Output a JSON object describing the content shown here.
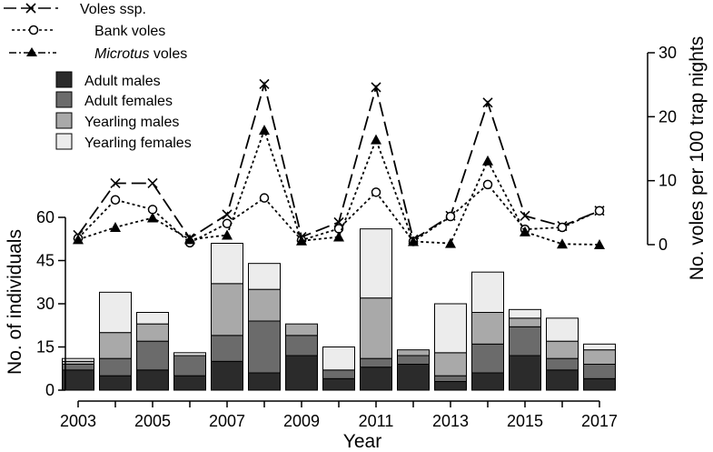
{
  "chart_data": {
    "type": "bar",
    "stacked": true,
    "title": "",
    "years": [
      2003,
      2004,
      2005,
      2006,
      2007,
      2008,
      2009,
      2010,
      2011,
      2012,
      2013,
      2014,
      2015,
      2016,
      2017
    ],
    "x_tick_labels": [
      "2003",
      "2005",
      "2007",
      "2009",
      "2011",
      "2013",
      "2015",
      "2017"
    ],
    "xlabel": "Year",
    "ylabel_left": "No. of individuals",
    "ylim_left": [
      0,
      60
    ],
    "yticks_left": [
      "0",
      "15",
      "30",
      "45",
      "60"
    ],
    "ylabel_right": "No. voles per 100 trap nights",
    "ylim_right": [
      0,
      30
    ],
    "yticks_right": [
      "0",
      "10",
      "20",
      "30"
    ],
    "bar_series": [
      {
        "name": "Adult males",
        "color": "#2b2b2b",
        "values": [
          7,
          5,
          7,
          5,
          10,
          6,
          12,
          4,
          8,
          9,
          3,
          6,
          12,
          7,
          4
        ]
      },
      {
        "name": "Adult females",
        "color": "#6b6b6b",
        "values": [
          2,
          6,
          10,
          7,
          9,
          18,
          7,
          3,
          3,
          3,
          2,
          10,
          10,
          4,
          5
        ]
      },
      {
        "name": "Yearling males",
        "color": "#a9a9a9",
        "values": [
          1,
          9,
          6,
          0,
          18,
          11,
          4,
          0,
          21,
          2,
          8,
          11,
          3,
          6,
          5
        ]
      },
      {
        "name": "Yearling females",
        "color": "#ececec",
        "values": [
          1,
          14,
          4,
          1,
          14,
          9,
          0,
          8,
          24,
          0,
          17,
          14,
          3,
          8,
          2
        ]
      }
    ],
    "line_series": [
      {
        "name": "Voles ssp.",
        "style": "long-dash",
        "marker": "x",
        "values": [
          1.5,
          9.6,
          9.6,
          1.0,
          4.7,
          25.1,
          1.2,
          3.5,
          24.6,
          0.8,
          4.5,
          22.2,
          4.5,
          2.9,
          5.3
        ]
      },
      {
        "name": "Bank voles",
        "style": "short-dash",
        "marker": "open-circle",
        "values": [
          1.0,
          7.0,
          5.5,
          0.3,
          3.3,
          7.3,
          0.7,
          2.5,
          8.2,
          0.5,
          4.4,
          9.4,
          2.4,
          2.7,
          5.3
        ]
      },
      {
        "name": "Microtus voles",
        "style": "dash-dot",
        "marker": "filled-triangle",
        "values": [
          0.8,
          2.7,
          4.2,
          0.8,
          1.5,
          17.9,
          0.6,
          1.2,
          16.4,
          0.5,
          0.2,
          13.1,
          2.0,
          0.1,
          0.0
        ]
      }
    ]
  },
  "legend": {
    "lines": [
      {
        "prefix": "",
        "italic": "",
        "suffix": "Voles ssp."
      },
      {
        "prefix": "",
        "italic": "",
        "suffix": "Bank voles"
      },
      {
        "prefix": "",
        "italic": "Microtus",
        "suffix": " voles"
      }
    ],
    "bars": [
      "Adult males",
      "Adult females",
      "Yearling males",
      "Yearling females"
    ]
  }
}
